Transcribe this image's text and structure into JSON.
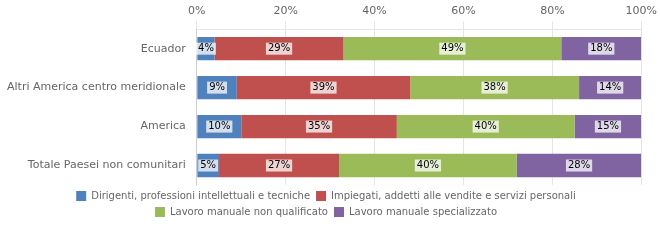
{
  "chart_data": {
    "type": "bar",
    "orientation": "horizontal",
    "stacked": true,
    "categories": [
      "Totale Paesei non comunitari",
      "America",
      "Altri America centro meridionale",
      "Ecuador"
    ],
    "series": [
      {
        "name": "Dirigenti, professioni intellettuali e tecniche",
        "color": "#4f81bd",
        "values": [
          5,
          10,
          9,
          4
        ],
        "value_labels": [
          "5%",
          "10%",
          "9%",
          "4%"
        ]
      },
      {
        "name": "Impiegati, addetti alle vendite e servizi personali",
        "color": "#c0504d",
        "values": [
          27,
          35,
          39,
          29
        ],
        "value_labels": [
          "27%",
          "35%",
          "39%",
          "29%"
        ]
      },
      {
        "name": "Lavoro manuale non qualificato",
        "color": "#9bbb59",
        "values": [
          40,
          40,
          38,
          49
        ],
        "value_labels": [
          "40%",
          "40%",
          "38%",
          "49%"
        ]
      },
      {
        "name": "Lavoro manuale specializzato",
        "color": "#8064a2",
        "values": [
          28,
          15,
          14,
          18
        ],
        "value_labels": [
          "28%",
          "15%",
          "14%",
          "18%"
        ]
      }
    ],
    "xlim": [
      0,
      100
    ],
    "xticks": [
      {
        "value": 0,
        "label": "0%"
      },
      {
        "value": 20,
        "label": "20%"
      },
      {
        "value": 40,
        "label": "40%"
      },
      {
        "value": 60,
        "label": "60%"
      },
      {
        "value": 80,
        "label": "80%"
      },
      {
        "value": 100,
        "label": "100%"
      }
    ],
    "grid": true,
    "data_labels": true,
    "legend": "bottom"
  }
}
